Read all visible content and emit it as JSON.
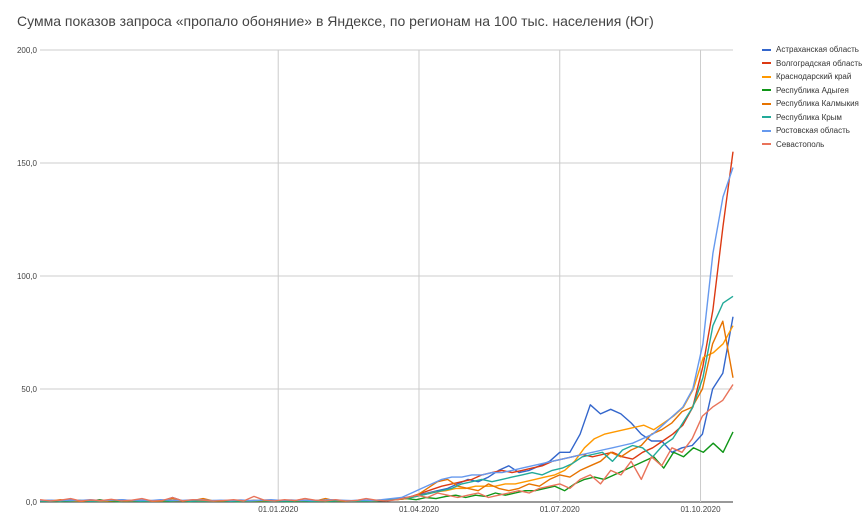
{
  "chart_data": {
    "type": "line",
    "title": "Сумма показов запроса «пропало обоняние» в Яндексе, по регионам на 100 тыс. населения (Юг)",
    "xlabel": "",
    "ylabel": "",
    "x_ticks": [
      "01.01.2020",
      "01.04.2020",
      "01.07.2020",
      "01.10.2020"
    ],
    "x_tick_positions": [
      22,
      35,
      48,
      61
    ],
    "y_ticks": [
      "0,0",
      "50,0",
      "100,0",
      "150,0",
      "200,0"
    ],
    "y_tick_values": [
      0,
      50,
      100,
      150,
      200
    ],
    "ylim": [
      0,
      200
    ],
    "xlim": [
      0,
      64
    ],
    "grid": true,
    "legend_position": "right",
    "series": [
      {
        "name": "Астраханская область",
        "color": "#3366cc",
        "values": [
          0.5,
          0.8,
          0.5,
          1,
          0.6,
          0.8,
          0.5,
          0.4,
          1,
          0.6,
          0.8,
          0.5,
          0.4,
          2,
          0.5,
          0.6,
          0.4,
          0.6,
          0.5,
          0.4,
          0.6,
          0.5,
          0.4,
          0.6,
          0.5,
          0.8,
          0.6,
          0.4,
          0.6,
          0.5,
          0.4,
          0.5,
          0.8,
          0.6,
          1,
          1.5,
          2,
          3,
          4,
          5,
          6,
          8,
          10,
          9,
          11,
          14,
          16,
          13,
          14,
          16,
          18,
          22,
          22,
          30,
          43,
          39,
          41,
          39,
          35,
          30,
          27,
          27,
          22,
          24,
          25,
          30,
          50,
          57,
          82
        ]
      },
      {
        "name": "Волгоградская область",
        "color": "#dc3912",
        "values": [
          0.4,
          0.6,
          0.3,
          0.5,
          0.7,
          0.4,
          0.5,
          0.6,
          0.3,
          0.5,
          0.4,
          0.6,
          0.5,
          0.4,
          0.6,
          0.5,
          0.3,
          0.5,
          0.4,
          0.6,
          0.5,
          0.4,
          0.3,
          0.5,
          0.6,
          0.4,
          0.5,
          0.3,
          0.6,
          0.4,
          0.5,
          0.4,
          0.6,
          0.5,
          0.6,
          1,
          1.5,
          2.5,
          4,
          5.5,
          7,
          8,
          9,
          10,
          12,
          13,
          14,
          13,
          14,
          15,
          16,
          18,
          19,
          20,
          21,
          20,
          21,
          22,
          20,
          19,
          22,
          24,
          27,
          30,
          34,
          42,
          60,
          85,
          122,
          155
        ]
      },
      {
        "name": "Краснодарский край",
        "color": "#ff9900",
        "values": [
          0.3,
          0.4,
          0.3,
          0.4,
          0.3,
          0.5,
          0.3,
          0.4,
          0.3,
          0.4,
          0.5,
          0.3,
          0.4,
          0.3,
          0.5,
          0.4,
          0.3,
          0.4,
          0.3,
          0.5,
          0.4,
          0.3,
          0.4,
          0.3,
          0.5,
          0.4,
          0.3,
          0.4,
          0.3,
          0.4,
          0.5,
          0.3,
          0.4,
          0.3,
          0.5,
          0.8,
          1,
          1.5,
          2.5,
          3.5,
          4.5,
          5,
          6,
          6,
          7,
          7,
          7,
          8,
          8,
          9,
          10,
          11,
          12,
          14,
          18,
          24,
          28,
          30,
          31,
          32,
          33,
          34,
          32,
          35,
          38,
          42,
          50,
          64,
          66,
          70,
          78
        ]
      },
      {
        "name": "Республика Адыгея",
        "color": "#109618",
        "values": [
          0.3,
          0.5,
          0.2,
          0.4,
          0.6,
          0.3,
          1,
          0.4,
          0.2,
          0.5,
          0.3,
          0.4,
          0.5,
          0.3,
          0.6,
          0.2,
          0.4,
          0.5,
          0.3,
          0.4,
          0.2,
          0.5,
          0.4,
          0.3,
          0.5,
          0.2,
          0.4,
          0.3,
          0.5,
          0.2,
          0.4,
          0.3,
          0.5,
          0.3,
          0.5,
          0.8,
          1,
          1.5,
          1,
          2,
          1.5,
          2.5,
          3,
          2,
          3,
          2.5,
          4,
          3,
          4,
          5,
          5,
          6,
          7,
          5,
          8,
          10,
          11,
          10,
          12,
          14,
          16,
          18,
          20,
          15,
          22,
          20,
          24,
          22,
          26,
          22,
          31
        ]
      },
      {
        "name": "Республика Калмыкия",
        "color": "#e67300",
        "values": [
          0.8,
          0.4,
          1,
          0.5,
          0.3,
          0.8,
          0.4,
          0.6,
          0.5,
          0.4,
          0.8,
          0.3,
          0.5,
          1.5,
          0.4,
          0.6,
          1.5,
          0.5,
          0.4,
          0.6,
          0.3,
          0.8,
          0.5,
          0.4,
          0.6,
          0.5,
          1.5,
          0.4,
          1.5,
          0.5,
          0.4,
          0.6,
          0.5,
          0.4,
          0.8,
          1,
          1.5,
          3,
          6,
          9,
          10,
          7,
          6,
          5,
          8,
          6,
          5,
          6,
          8,
          7,
          10,
          12,
          11,
          14,
          16,
          18,
          22,
          20,
          23,
          25,
          30,
          32,
          35,
          40,
          42,
          50,
          70,
          80,
          55
        ]
      },
      {
        "name": "Республика Крым",
        "color": "#22aa99",
        "values": [
          0.5,
          0.3,
          0.6,
          0.4,
          0.7,
          0.3,
          0.5,
          0.8,
          0.4,
          0.6,
          0.3,
          0.5,
          0.7,
          0.4,
          0.6,
          0.3,
          0.5,
          0.4,
          0.6,
          0.3,
          0.5,
          0.4,
          0.7,
          0.3,
          0.5,
          0.4,
          0.6,
          0.3,
          0.5,
          0.4,
          0.6,
          0.3,
          0.5,
          0.4,
          0.6,
          1,
          1.5,
          2,
          3,
          4,
          5,
          6,
          8,
          9,
          10,
          9,
          10,
          11,
          12,
          13,
          12,
          14,
          15,
          17,
          20,
          21,
          22,
          18,
          23,
          25,
          24,
          20,
          25,
          28,
          35,
          42,
          55,
          78,
          88,
          91
        ]
      },
      {
        "name": "Ростовская область",
        "color": "#6699ee",
        "values": [
          0.6,
          0.8,
          0.5,
          0.9,
          0.7,
          1,
          0.6,
          0.8,
          1,
          0.7,
          0.9,
          0.6,
          1,
          0.8,
          0.7,
          0.9,
          1,
          0.6,
          0.8,
          0.7,
          0.9,
          0.6,
          0.8,
          1,
          0.7,
          0.9,
          0.6,
          0.8,
          0.7,
          1,
          0.8,
          0.6,
          0.9,
          0.7,
          1,
          1.5,
          2,
          4,
          6,
          8,
          10,
          11,
          11,
          12,
          12,
          13,
          13,
          14,
          15,
          16,
          17,
          18,
          19,
          20,
          21,
          22,
          23,
          24,
          25,
          26,
          28,
          30,
          34,
          38,
          42,
          50,
          70,
          110,
          135,
          148
        ]
      },
      {
        "name": "Севастополь",
        "color": "#e9735a",
        "values": [
          1,
          0.5,
          0.8,
          1.5,
          0.4,
          0.9,
          0.6,
          1.2,
          0.5,
          0.8,
          1.5,
          0.4,
          0.6,
          2,
          0.5,
          1,
          0.8,
          0.4,
          0.6,
          1,
          0.5,
          2.5,
          0.8,
          0.5,
          1,
          0.6,
          1.5,
          0.8,
          0.5,
          1,
          0.4,
          0.6,
          1.5,
          0.8,
          0.5,
          1,
          2,
          3,
          2,
          4,
          3,
          2,
          3,
          4,
          2,
          3,
          4,
          5,
          4,
          6,
          7,
          8,
          6,
          10,
          12,
          8,
          14,
          12,
          18,
          10,
          20,
          16,
          24,
          22,
          28,
          38,
          42,
          45,
          52
        ]
      }
    ]
  }
}
